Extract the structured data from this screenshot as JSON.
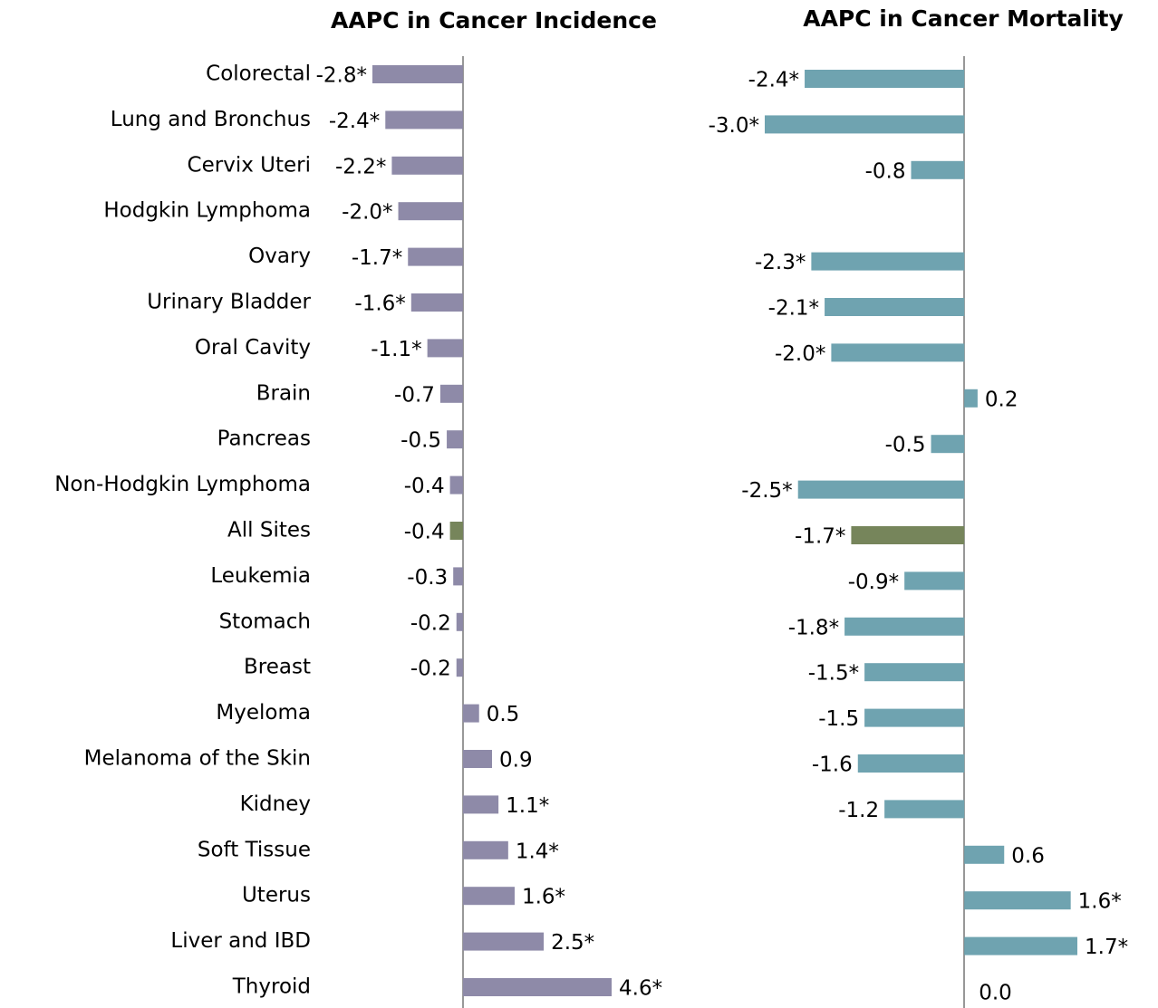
{
  "chart_data": [
    {
      "type": "hbar",
      "title": "AAPC in Cancer Incidence",
      "categories": [
        "Colorectal",
        "Lung and Bronchus",
        "Cervix Uteri",
        "Hodgkin Lymphoma",
        "Ovary",
        "Urinary Bladder",
        "Oral Cavity",
        "Brain",
        "Pancreas",
        "Non-Hodgkin Lymphoma",
        "All Sites",
        "Leukemia",
        "Stomach",
        "Breast",
        "Myeloma",
        "Melanoma of the Skin",
        "Kidney",
        "Soft Tissue",
        "Uterus",
        "Liver and IBD",
        "Thyroid"
      ],
      "values": [
        -2.8,
        -2.4,
        -2.2,
        -2.0,
        -1.7,
        -1.6,
        -1.1,
        -0.7,
        -0.5,
        -0.4,
        -0.4,
        -0.3,
        -0.2,
        -0.2,
        0.5,
        0.9,
        1.1,
        1.4,
        1.6,
        2.5,
        4.6
      ],
      "value_labels": [
        "-2.8*",
        "-2.4*",
        "-2.2*",
        "-2.0*",
        "-1.7*",
        "-1.6*",
        "-1.1*",
        "-0.7",
        "-0.5",
        "-0.4",
        "-0.4",
        "-0.3",
        "-0.2",
        "-0.2",
        "0.5",
        "0.9",
        "1.1*",
        "1.4*",
        "1.6*",
        "2.5*",
        "4.6*"
      ],
      "colors": [
        "#8e8aa8",
        "#8e8aa8",
        "#8e8aa8",
        "#8e8aa8",
        "#8e8aa8",
        "#8e8aa8",
        "#8e8aa8",
        "#8e8aa8",
        "#8e8aa8",
        "#8e8aa8",
        "#76855b",
        "#8e8aa8",
        "#8e8aa8",
        "#8e8aa8",
        "#8e8aa8",
        "#8e8aa8",
        "#8e8aa8",
        "#8e8aa8",
        "#8e8aa8",
        "#8e8aa8",
        "#8e8aa8"
      ],
      "xlim": [
        -2.8,
        4.6
      ]
    },
    {
      "type": "hbar",
      "title": "AAPC in Cancer Mortality",
      "values": [
        -2.4,
        -3.0,
        -0.8,
        null,
        -2.3,
        -2.1,
        -2.0,
        0.2,
        -0.5,
        -2.5,
        -1.7,
        -0.9,
        -1.8,
        -1.5,
        -1.5,
        -1.6,
        -1.2,
        0.6,
        1.6,
        1.7,
        0
      ],
      "value_labels": [
        "-2.4*",
        "-3.0*",
        "-0.8",
        null,
        "-2.3*",
        "-2.1*",
        "-2.0*",
        "0.2",
        "-0.5",
        "-2.5*",
        "-1.7*",
        "-0.9*",
        "-1.8*",
        "-1.5*",
        "-1.5",
        "-1.6",
        "-1.2",
        "0.6",
        "1.6*",
        "1.7*",
        "0.0"
      ],
      "colors": [
        "#6fa3b0",
        "#6fa3b0",
        "#6fa3b0",
        "#6fa3b0",
        "#6fa3b0",
        "#6fa3b0",
        "#6fa3b0",
        "#6fa3b0",
        "#6fa3b0",
        "#6fa3b0",
        "#76855b",
        "#6fa3b0",
        "#6fa3b0",
        "#6fa3b0",
        "#6fa3b0",
        "#6fa3b0",
        "#6fa3b0",
        "#6fa3b0",
        "#6fa3b0",
        "#6fa3b0",
        "#6fa3b0"
      ],
      "xlim": [
        -3.0,
        1.7
      ]
    }
  ]
}
